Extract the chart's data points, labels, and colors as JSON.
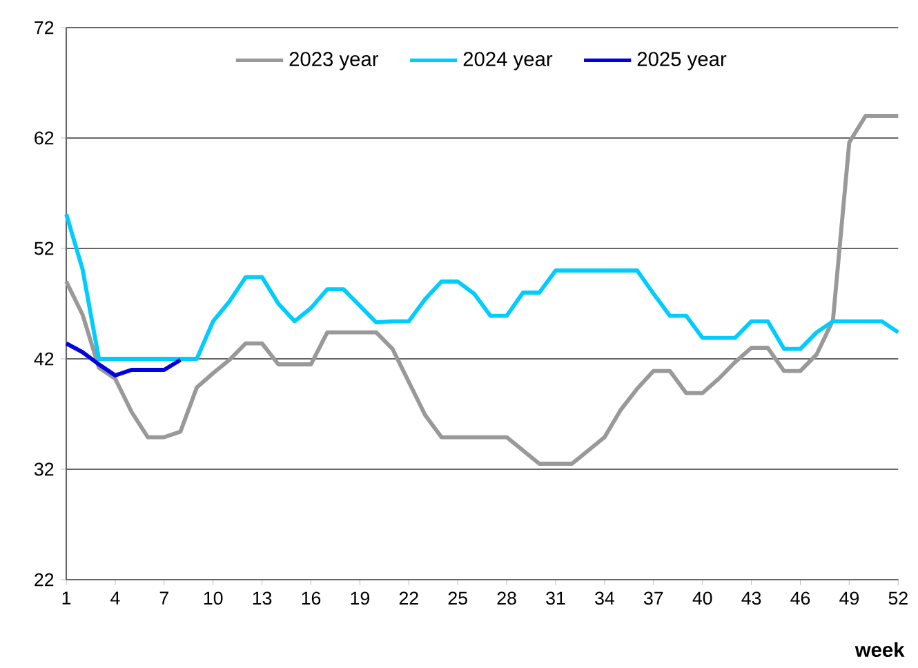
{
  "chart_data": {
    "type": "line",
    "xlabel": "week",
    "x": [
      1,
      2,
      3,
      4,
      5,
      6,
      7,
      8,
      9,
      10,
      11,
      12,
      13,
      14,
      15,
      16,
      17,
      18,
      19,
      20,
      21,
      22,
      23,
      24,
      25,
      26,
      27,
      28,
      29,
      30,
      31,
      32,
      33,
      34,
      35,
      36,
      37,
      38,
      39,
      40,
      41,
      42,
      43,
      44,
      45,
      46,
      47,
      48,
      49,
      50,
      51,
      52
    ],
    "series": [
      {
        "name": "2023 year",
        "color": "#999999",
        "values": [
          49.0,
          46.0,
          41.2,
          40.2,
          37.2,
          34.9,
          34.9,
          35.4,
          39.4,
          40.7,
          41.9,
          43.4,
          43.4,
          41.5,
          41.5,
          41.5,
          44.4,
          44.4,
          44.4,
          44.4,
          42.9,
          39.9,
          36.9,
          34.9,
          34.9,
          34.9,
          34.9,
          34.9,
          33.7,
          32.5,
          32.5,
          32.5,
          33.7,
          34.9,
          37.4,
          39.3,
          40.9,
          40.9,
          38.9,
          38.9,
          40.2,
          41.7,
          43.0,
          43.0,
          40.9,
          40.9,
          42.4,
          45.5,
          61.6,
          64.0,
          64.0,
          64.0
        ]
      },
      {
        "name": "2024 year",
        "color": "#00ccff",
        "values": [
          55.1,
          50.1,
          42.0,
          42.0,
          42.0,
          42.0,
          42.0,
          42.0,
          42.0,
          45.4,
          47.2,
          49.4,
          49.4,
          47.0,
          45.4,
          46.6,
          48.3,
          48.3,
          46.8,
          45.3,
          45.4,
          45.4,
          47.4,
          49.0,
          49.0,
          47.9,
          45.9,
          45.9,
          48.0,
          48.0,
          50.0,
          50.0,
          50.0,
          50.0,
          50.0,
          50.0,
          47.9,
          45.9,
          45.9,
          43.9,
          43.9,
          43.9,
          45.4,
          45.4,
          42.9,
          42.9,
          44.4,
          45.4,
          45.4,
          45.4,
          45.4,
          44.4
        ]
      },
      {
        "name": "2025 year",
        "color": "#0000e0",
        "x": [
          1,
          2,
          3,
          4,
          5,
          6,
          7,
          8
        ],
        "values": [
          43.4,
          42.6,
          41.5,
          40.5,
          41.0,
          41.0,
          41.0,
          41.9
        ]
      }
    ],
    "xlim": [
      1,
      52
    ],
    "xticks": [
      1,
      4,
      7,
      10,
      13,
      16,
      19,
      22,
      25,
      28,
      31,
      34,
      37,
      40,
      43,
      46,
      49,
      52
    ],
    "ylim": [
      22,
      72
    ],
    "yticks": [
      22,
      32,
      42,
      52,
      62,
      72
    ],
    "grid": "y",
    "legend": "top",
    "marker": "none",
    "line_style": "solid"
  }
}
